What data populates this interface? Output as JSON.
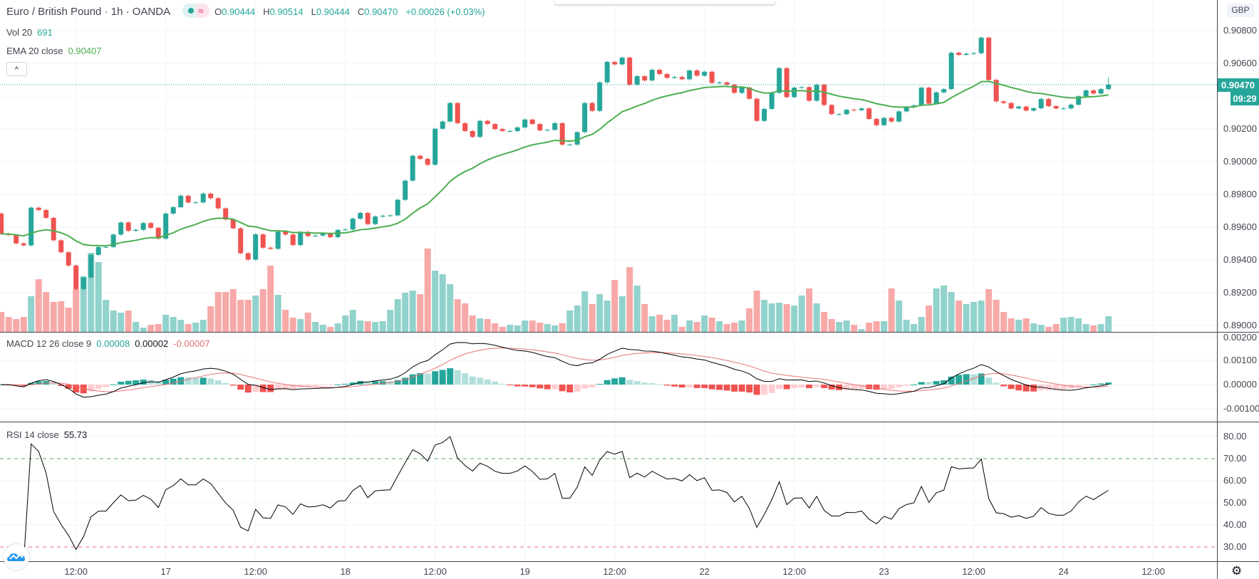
{
  "header": {
    "title": "Euro / British Pound · 1h · OANDA",
    "ohlc": {
      "open_label": "O",
      "open": "0.90444",
      "high_label": "H",
      "high": "0.90514",
      "low_label": "L",
      "low": "0.90444",
      "close_label": "C",
      "close": "0.90470",
      "change": "+0.00026 (+0.03%)"
    },
    "vol_label": "Vol 20",
    "vol_value": "691",
    "ema_label": "EMA 20 close",
    "ema_value": "0.90407",
    "collapse_glyph": "^"
  },
  "macd_legend": {
    "label": "MACD 12 26 close 9",
    "histogram": "0.00008",
    "macd": "0.00002",
    "signal": "-0.00007"
  },
  "rsi_legend": {
    "label": "RSI 14 close",
    "value": "55.73"
  },
  "price_axis": {
    "currency": "GBP",
    "labels": [
      "0.90800",
      "0.90600",
      "0.90200",
      "0.90000",
      "0.89800",
      "0.89600",
      "0.89400",
      "0.89200",
      "0.89000"
    ],
    "current_price": "0.90470",
    "countdown": "09:29"
  },
  "macd_axis": {
    "labels": [
      "0.00200",
      "0.00100",
      "0.00000",
      "-0.00100"
    ]
  },
  "rsi_axis": {
    "labels": [
      "80.00",
      "70.00",
      "60.00",
      "50.00",
      "40.00",
      "30.00"
    ]
  },
  "time_axis": {
    "labels": [
      "12:00",
      "17",
      "12:00",
      "18",
      "12:00",
      "19",
      "12:00",
      "22",
      "12:00",
      "23",
      "12:00",
      "24",
      "12:00"
    ]
  },
  "icons": {
    "settings": "gear-icon",
    "logo": "tradingview-logo",
    "collapse": "chevron-up-icon"
  },
  "colors": {
    "up": "#26a69a",
    "down": "#ef5350",
    "vol_up": "#92d2cc",
    "vol_down": "#f7a9a7",
    "ema": "#4caf50",
    "macd": "#000000",
    "signal": "#e57373",
    "rsi": "#000000",
    "overbought": "#4caf50",
    "oversold": "#e57373"
  },
  "chart_data": {
    "type": "candlestick",
    "symbol": "EUR/GBP",
    "interval": "1h",
    "price_range": [
      0.8895,
      0.9082
    ],
    "first_open": 0.89683,
    "last_high": 0.90514,
    "close": [
      0.89559,
      0.89552,
      0.89501,
      0.89489,
      0.89719,
      0.89705,
      0.89657,
      0.8952,
      0.89447,
      0.89366,
      0.89222,
      0.89293,
      0.89431,
      0.89479,
      0.89479,
      0.89555,
      0.89629,
      0.89578,
      0.89584,
      0.89625,
      0.89596,
      0.8953,
      0.89683,
      0.89722,
      0.89792,
      0.89751,
      0.89751,
      0.89805,
      0.89777,
      0.89715,
      0.89647,
      0.89593,
      0.89441,
      0.89402,
      0.89556,
      0.89475,
      0.89468,
      0.89572,
      0.89555,
      0.89491,
      0.89571,
      0.89546,
      0.89549,
      0.89561,
      0.89539,
      0.89583,
      0.89586,
      0.89652,
      0.89687,
      0.89619,
      0.89665,
      0.8967,
      0.89672,
      0.89767,
      0.89884,
      0.90036,
      0.90017,
      0.89981,
      0.90201,
      0.90245,
      0.90358,
      0.90235,
      0.90187,
      0.90151,
      0.90249,
      0.9023,
      0.90199,
      0.90187,
      0.90187,
      0.90209,
      0.90257,
      0.9023,
      0.90191,
      0.90194,
      0.90235,
      0.90104,
      0.90104,
      0.9018,
      0.90358,
      0.9031,
      0.90484,
      0.90609,
      0.90594,
      0.90635,
      0.9047,
      0.90522,
      0.90496,
      0.90561,
      0.90535,
      0.90512,
      0.90517,
      0.90503,
      0.90557,
      0.90525,
      0.90549,
      0.90481,
      0.90484,
      0.9047,
      0.9042,
      0.90452,
      0.90384,
      0.90249,
      0.90322,
      0.9042,
      0.90571,
      0.90394,
      0.90452,
      0.90455,
      0.90372,
      0.9047,
      0.90346,
      0.9029,
      0.9029,
      0.90317,
      0.90314,
      0.90325,
      0.90261,
      0.90223,
      0.90267,
      0.90245,
      0.90307,
      0.90332,
      0.90343,
      0.90452,
      0.90354,
      0.90423,
      0.90443,
      0.90665,
      0.90652,
      0.90659,
      0.90662,
      0.90757,
      0.90499,
      0.90368,
      0.90358,
      0.90325,
      0.90336,
      0.90312,
      0.90326,
      0.90383,
      0.90339,
      0.90325,
      0.90325,
      0.90348,
      0.90399,
      0.90435,
      0.90416,
      0.90443,
      0.9047
    ],
    "volume": [
      879,
      659,
      565,
      659,
      1570,
      2324,
      1758,
      1319,
      1350,
      1068,
      1884,
      2449,
      3485,
      3077,
      1413,
      942,
      848,
      942,
      440,
      188,
      314,
      345,
      754,
      659,
      534,
      345,
      408,
      534,
      1130,
      1758,
      1758,
      1884,
      1413,
      1413,
      1601,
      1884,
      2920,
      1633,
      973,
      628,
      565,
      848,
      440,
      314,
      220,
      377,
      722,
      973,
      502,
      471,
      440,
      471,
      973,
      1444,
      1727,
      1821,
      1664,
      3674,
      2700,
      2543,
      2104,
      1444,
      1256,
      722,
      597,
      565,
      377,
      220,
      314,
      283,
      502,
      502,
      408,
      345,
      283,
      377,
      942,
      1162,
      1790,
      1225,
      1664,
      1382,
      2292,
      1570,
      2857,
      2041,
      1225,
      691,
      754,
      534,
      754,
      220,
      502,
      440,
      722,
      628,
      471,
      345,
      408,
      502,
      1036,
      1821,
      1413,
      1256,
      1287,
      1225,
      1162,
      1601,
      1915,
      1256,
      879,
      565,
      440,
      502,
      314,
      126,
      408,
      471,
      471,
      1915,
      1382,
      534,
      345,
      659,
      1162,
      1915,
      2041,
      1758,
      1382,
      1225,
      1319,
      1382,
      1884,
      1413,
      879,
      597,
      534,
      597,
      377,
      314,
      220,
      345,
      628,
      659,
      597,
      345,
      283,
      345,
      691
    ],
    "indicators": {
      "ema_period": 20,
      "macd": [
        12,
        26,
        9
      ],
      "rsi_period": 14,
      "rsi_levels": [
        70,
        30
      ]
    },
    "macd_range": [
      -0.0015,
      0.002
    ],
    "rsi_range": [
      23,
      84
    ],
    "grid": true
  }
}
